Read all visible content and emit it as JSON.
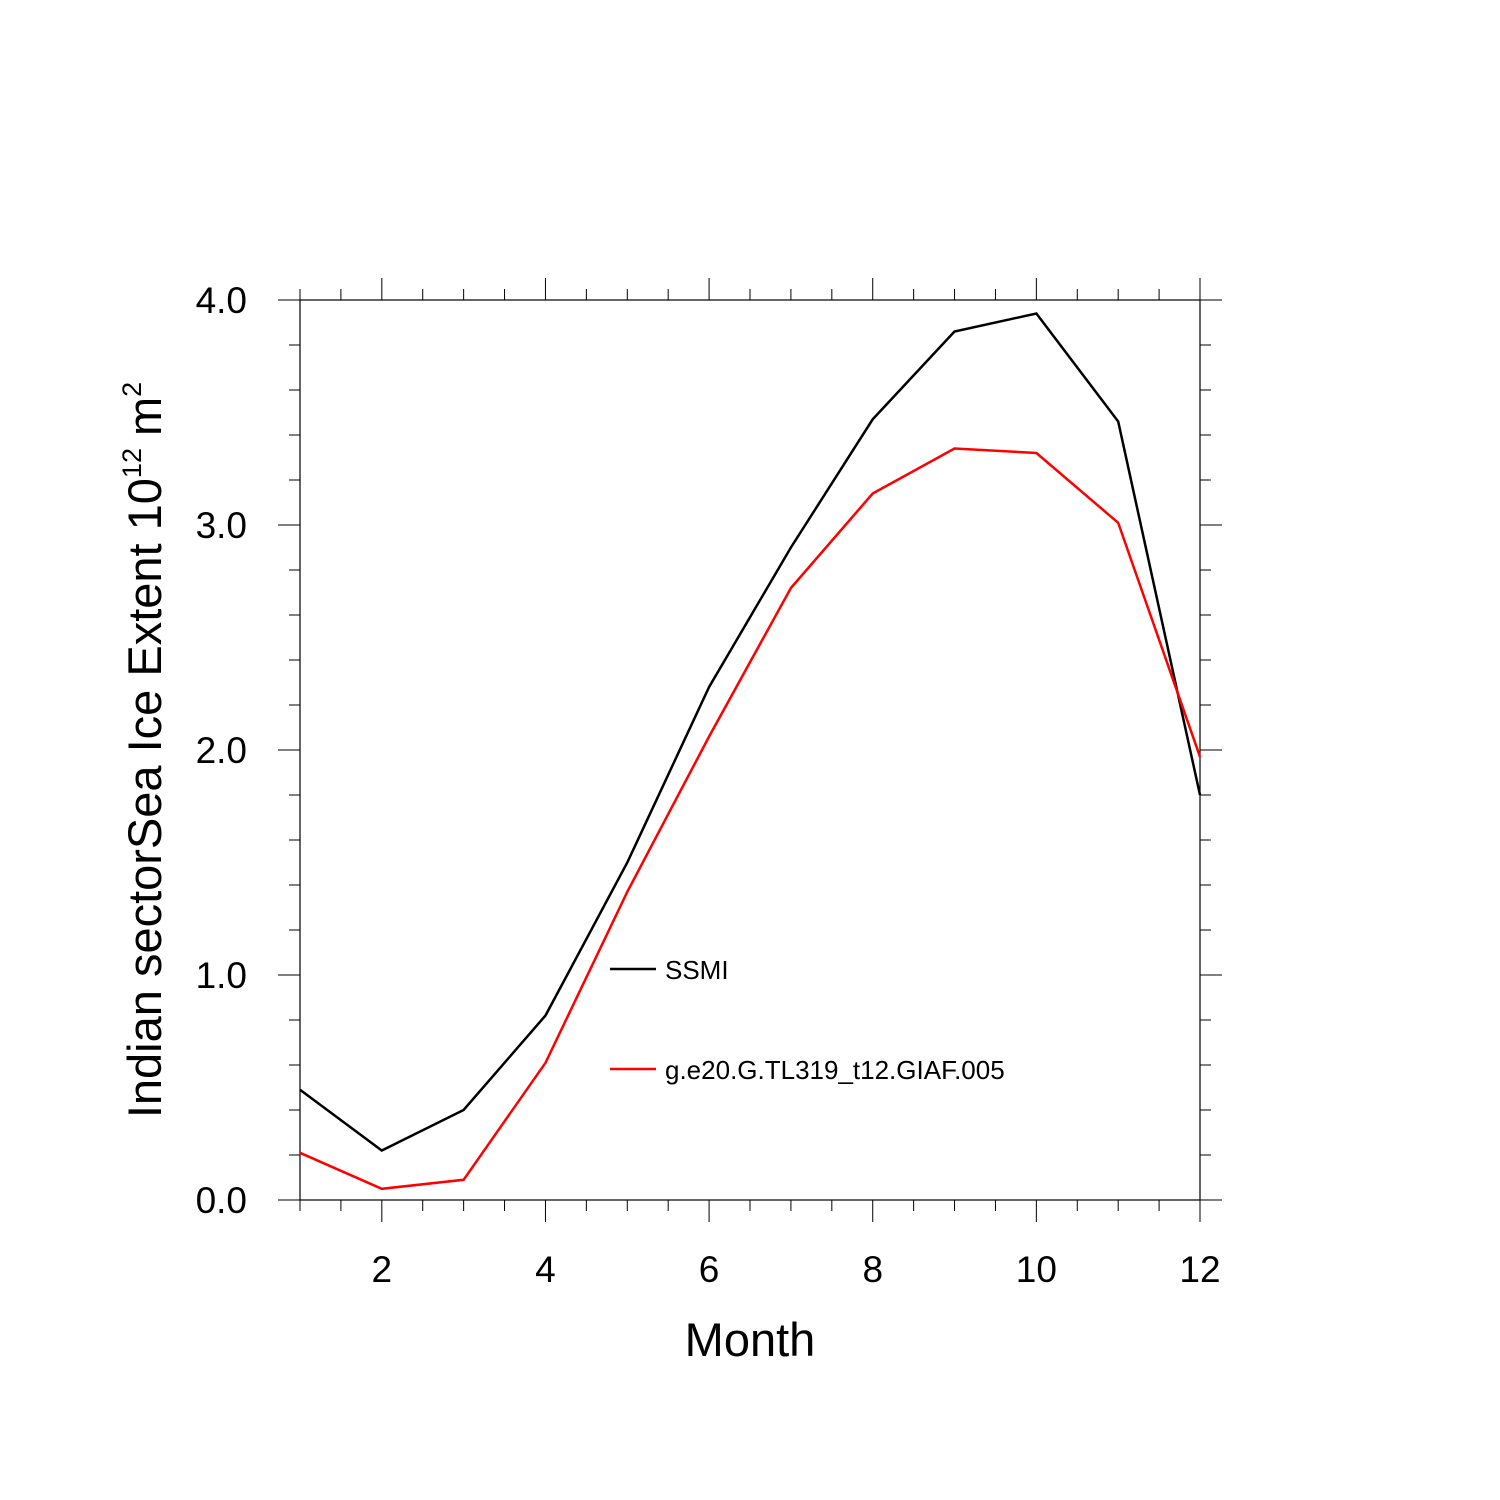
{
  "chart_data": {
    "type": "line",
    "title": "",
    "xlabel": "Month",
    "ylabel": {
      "base": "Indian sectorSea Ice Extent 10",
      "superscript_1": "12",
      "unit": "m",
      "superscript_2": "2"
    },
    "xlim": [
      1,
      12
    ],
    "ylim": [
      0.0,
      4.0
    ],
    "x_ticks": [
      2,
      4,
      6,
      8,
      10,
      12
    ],
    "x_tick_labels": [
      "2",
      "4",
      "6",
      "8",
      "10",
      "12"
    ],
    "y_ticks": [
      0.0,
      1.0,
      2.0,
      3.0,
      4.0
    ],
    "y_tick_labels": [
      "0.0",
      "1.0",
      "2.0",
      "3.0",
      "4.0"
    ],
    "grid": false,
    "legend_placement": "center",
    "x": [
      1,
      2,
      3,
      4,
      5,
      6,
      7,
      8,
      9,
      10,
      11,
      12
    ],
    "series": [
      {
        "name": "SSMI",
        "color": "#000000",
        "values": [
          0.49,
          0.22,
          0.4,
          0.82,
          1.5,
          2.28,
          2.9,
          3.47,
          3.86,
          3.94,
          3.46,
          1.8
        ]
      },
      {
        "name": "g.e20.G.TL319_t12.GIAF.005",
        "color": "#ff0000",
        "values": [
          0.21,
          0.05,
          0.09,
          0.61,
          1.37,
          2.06,
          2.72,
          3.14,
          3.34,
          3.32,
          3.01,
          1.97
        ]
      }
    ]
  }
}
